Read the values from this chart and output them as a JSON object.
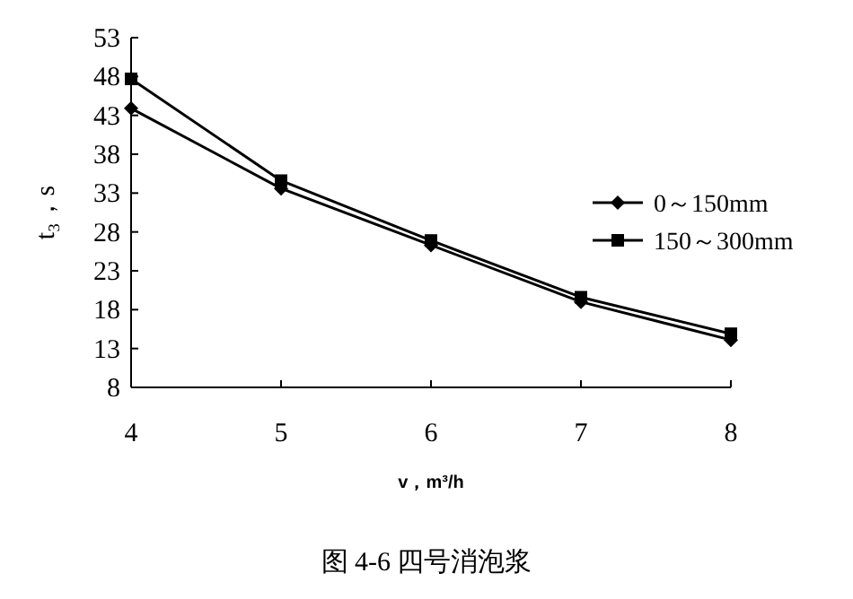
{
  "chart_data": {
    "type": "line",
    "title": "图 4-6 四号消泡浆",
    "xlabel": "v，m³/h",
    "ylabel": "t₃，s",
    "x": [
      4,
      5,
      6,
      7,
      8
    ],
    "xlim": [
      4,
      8
    ],
    "xticks": [
      4,
      5,
      6,
      7,
      8
    ],
    "ylim": [
      8,
      53
    ],
    "yticks": [
      8,
      13,
      18,
      23,
      28,
      33,
      38,
      43,
      48,
      53
    ],
    "legend": "right",
    "grid": false,
    "series": [
      {
        "name": "0～150mm",
        "color": "#000000",
        "marker": "diamond",
        "values": [
          43.9,
          33.6,
          26.3,
          19.0,
          14.1
        ]
      },
      {
        "name": "150～300mm",
        "color": "#000000",
        "marker": "square",
        "values": [
          47.7,
          34.6,
          26.9,
          19.6,
          14.9
        ]
      }
    ]
  }
}
